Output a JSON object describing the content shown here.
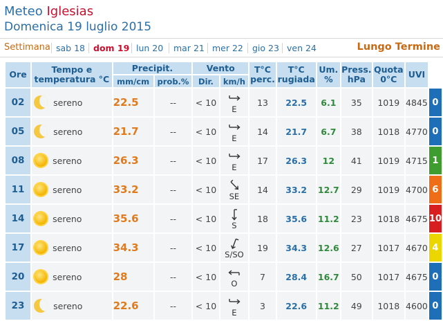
{
  "header": {
    "title_prefix": "Meteo",
    "city": "Iglesias",
    "date": "Domenica 19 luglio 2015"
  },
  "daysbar": {
    "settimana": "Settimana",
    "days": [
      "sab 18",
      "dom 19",
      "lun 20",
      "mar 21",
      "mer 22",
      "gio 23",
      "ven 24"
    ],
    "active_index": 1,
    "lungo_termine": "Lungo Termine"
  },
  "columns": {
    "ore": "Ore",
    "tempo": "Tempo e temperatura °C",
    "precipit": "Precipit.",
    "mmcm": "mm/cm",
    "prob": "prob.%",
    "vento": "Vento",
    "dir": "Dir.",
    "kmh": "km/h",
    "tperc": "T°C perc.",
    "trug": "T°C rugiada",
    "um": "Um. %",
    "press": "Press. hPa",
    "quota": "Quota 0°C",
    "uvi": "UVI"
  },
  "colors": {
    "uvi_0": "#1e6fb8",
    "uvi_1": "#3e9d2e",
    "uvi_4": "#ecd600",
    "uvi_6": "#ee6d16",
    "uvi_10": "#d81e1e"
  },
  "rows": [
    {
      "ore": "02",
      "icon": "moon-icon",
      "cond": "sereno",
      "temp": "22.5",
      "mm": "--",
      "prob": "< 10",
      "dir": "E",
      "dir_deg": 90,
      "kmh": "13",
      "perc": "22.5",
      "rug": "6.1",
      "um": "35",
      "press": "1019",
      "quota": "4845",
      "uvi": "0",
      "uvi_color": "#1e6fb8"
    },
    {
      "ore": "05",
      "icon": "moon-icon",
      "cond": "sereno",
      "temp": "21.7",
      "mm": "--",
      "prob": "< 10",
      "dir": "E",
      "dir_deg": 90,
      "kmh": "14",
      "perc": "21.7",
      "rug": "6.7",
      "um": "38",
      "press": "1018",
      "quota": "4770",
      "uvi": "0",
      "uvi_color": "#1e6fb8"
    },
    {
      "ore": "08",
      "icon": "sun-icon",
      "cond": "sereno",
      "temp": "26.3",
      "mm": "--",
      "prob": "< 10",
      "dir": "E",
      "dir_deg": 90,
      "kmh": "17",
      "perc": "26.3",
      "rug": "12",
      "um": "41",
      "press": "1019",
      "quota": "4715",
      "uvi": "1",
      "uvi_color": "#3e9d2e"
    },
    {
      "ore": "11",
      "icon": "sun-icon",
      "cond": "sereno",
      "temp": "33.2",
      "mm": "--",
      "prob": "< 10",
      "dir": "SE",
      "dir_deg": 135,
      "kmh": "14",
      "perc": "33.2",
      "rug": "12.7",
      "um": "29",
      "press": "1019",
      "quota": "4700",
      "uvi": "6",
      "uvi_color": "#ee6d16"
    },
    {
      "ore": "14",
      "icon": "sun-icon",
      "cond": "sereno",
      "temp": "35.6",
      "mm": "--",
      "prob": "< 10",
      "dir": "S",
      "dir_deg": 180,
      "kmh": "18",
      "perc": "35.6",
      "rug": "11.2",
      "um": "23",
      "press": "1018",
      "quota": "4675",
      "uvi": "10",
      "uvi_color": "#d81e1e"
    },
    {
      "ore": "17",
      "icon": "sun-icon",
      "cond": "sereno",
      "temp": "34.3",
      "mm": "--",
      "prob": "< 10",
      "dir": "S/SO",
      "dir_deg": 200,
      "kmh": "19",
      "perc": "34.3",
      "rug": "12.6",
      "um": "27",
      "press": "1017",
      "quota": "4670",
      "uvi": "4",
      "uvi_color": "#ecd600"
    },
    {
      "ore": "20",
      "icon": "sun-icon",
      "cond": "sereno",
      "temp": "28",
      "mm": "--",
      "prob": "< 10",
      "dir": "O",
      "dir_deg": 270,
      "kmh": "7",
      "perc": "28.4",
      "rug": "16.7",
      "um": "50",
      "press": "1017",
      "quota": "4675",
      "uvi": "0",
      "uvi_color": "#1e6fb8"
    },
    {
      "ore": "23",
      "icon": "moon-icon",
      "cond": "sereno",
      "temp": "22.6",
      "mm": "--",
      "prob": "< 10",
      "dir": "E",
      "dir_deg": 90,
      "kmh": "3",
      "perc": "22.6",
      "rug": "11.2",
      "um": "49",
      "press": "1018",
      "quota": "4600",
      "uvi": "0",
      "uvi_color": "#1e6fb8"
    }
  ]
}
